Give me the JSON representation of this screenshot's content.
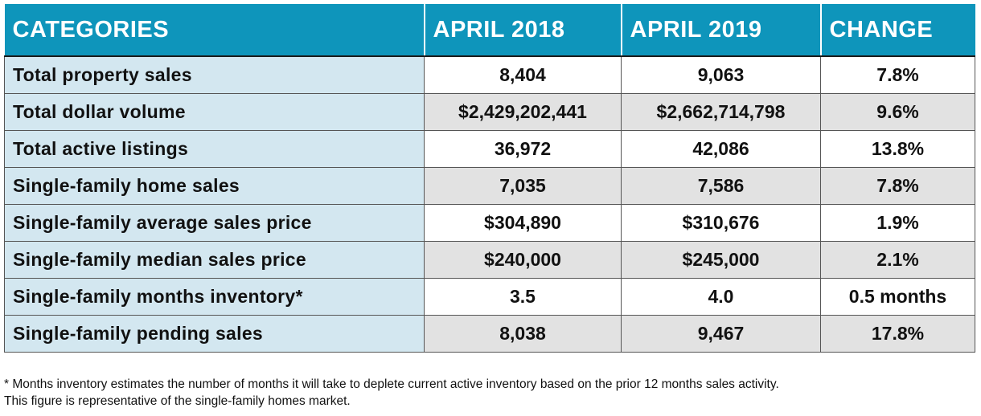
{
  "headers": [
    "CATEGORIES",
    "APRIL 2018",
    "APRIL 2019",
    "CHANGE"
  ],
  "rows": [
    [
      "Total property sales",
      "8,404",
      "9,063",
      "7.8%"
    ],
    [
      "Total dollar volume",
      "$2,429,202,441",
      "$2,662,714,798",
      "9.6%"
    ],
    [
      "Total active listings",
      "36,972",
      "42,086",
      "13.8%"
    ],
    [
      "Single-family home sales",
      "7,035",
      "7,586",
      "7.8%"
    ],
    [
      "Single-family average sales price",
      "$304,890",
      "$310,676",
      "1.9%"
    ],
    [
      "Single-family median sales price",
      "$240,000",
      "$245,000",
      "2.1%"
    ],
    [
      "Single-family months inventory*",
      "3.5",
      "4.0",
      "0.5 months"
    ],
    [
      "Single-family pending sales",
      "8,038",
      "9,467",
      "17.8%"
    ]
  ],
  "footnote": {
    "line1": "* Months inventory estimates the number of months it will take to deplete current active inventory based on the prior 12 months sales activity.",
    "line2": "This figure is representative of the single-family homes market."
  },
  "colors": {
    "header_bg": "#0e95bb",
    "category_bg": "#d3e7f0",
    "alt_row_bg": "#e2e2e2"
  }
}
